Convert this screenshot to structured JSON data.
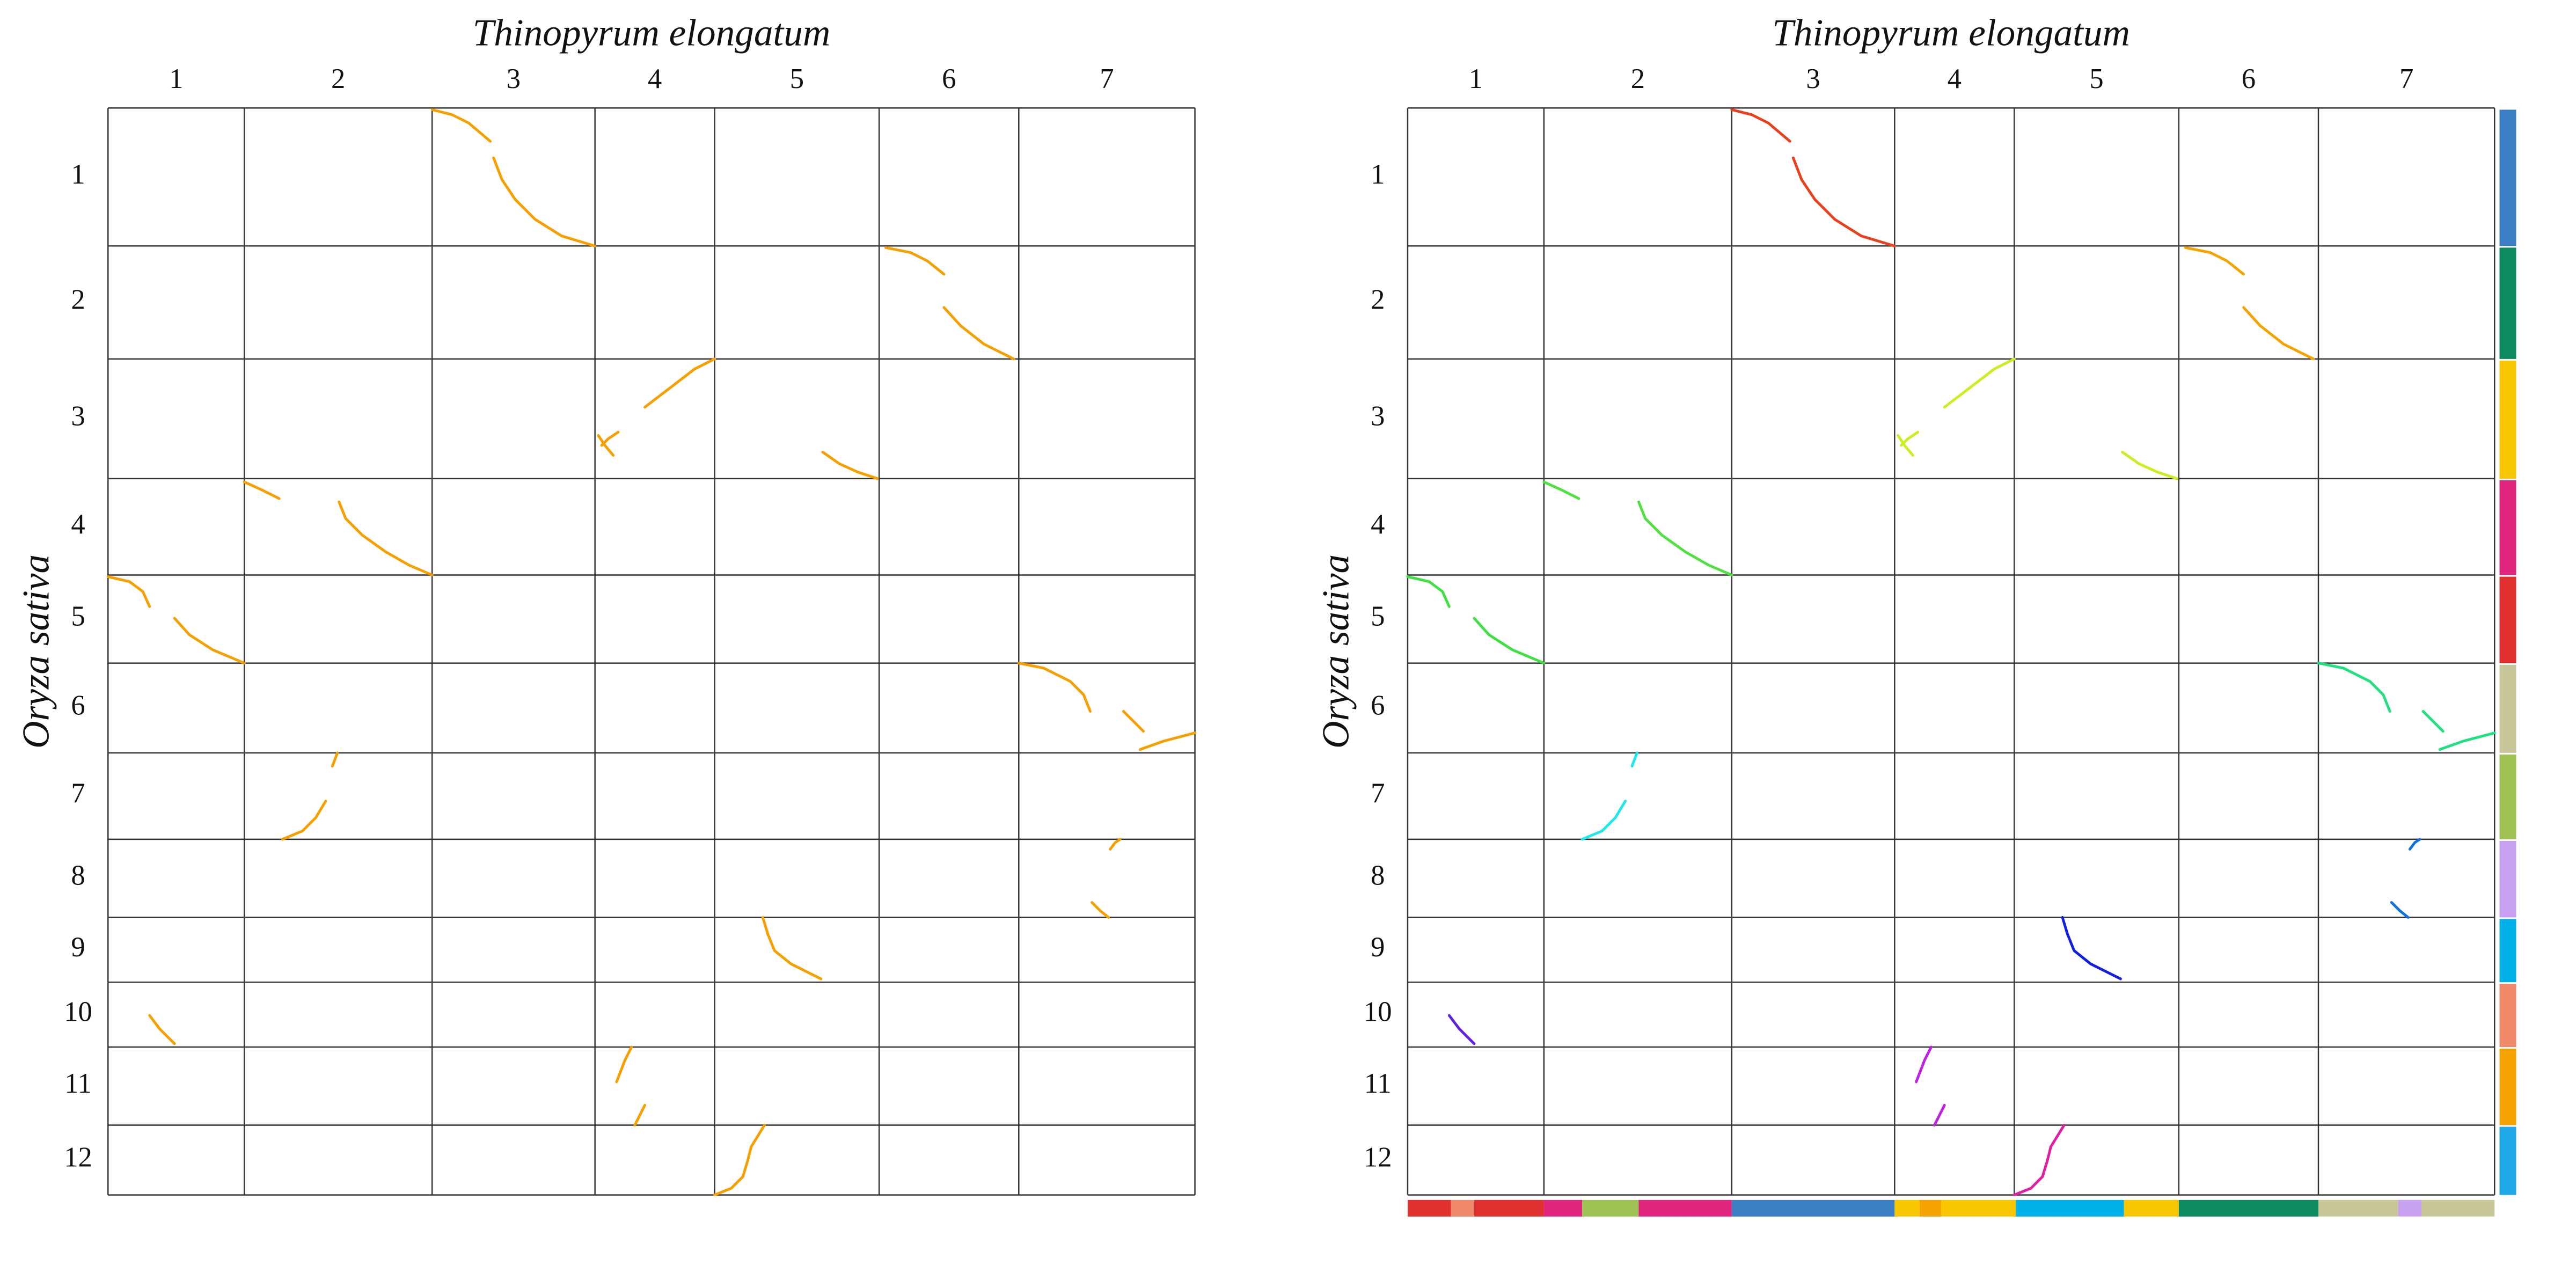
{
  "panels": [
    {
      "title": "Thinopyrum elongatum",
      "y_title": "Oryza sativa",
      "x_labels": [
        "1",
        "2",
        "3",
        "4",
        "5",
        "6",
        "7"
      ],
      "y_labels": [
        "1",
        "2",
        "3",
        "4",
        "5",
        "6",
        "7",
        "8",
        "9",
        "10",
        "11",
        "12"
      ]
    },
    {
      "title": "Thinopyrum elongatum",
      "y_title": "Oryza sativa",
      "x_labels": [
        "1",
        "2",
        "3",
        "4",
        "5",
        "6",
        "7"
      ],
      "y_labels": [
        "1",
        "2",
        "3",
        "4",
        "5",
        "6",
        "7",
        "8",
        "9",
        "10",
        "11",
        "12"
      ]
    }
  ]
}
